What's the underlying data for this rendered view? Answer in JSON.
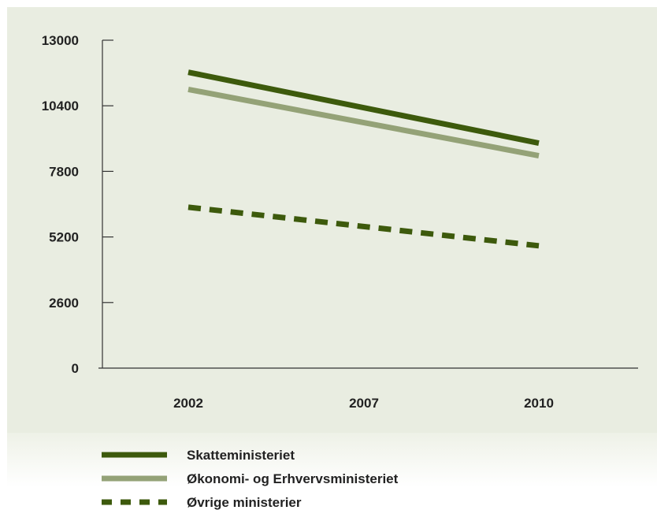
{
  "chart_data": {
    "type": "line",
    "x": [
      "2002",
      "2007",
      "2010"
    ],
    "yticks": [
      0,
      2600,
      5200,
      7800,
      10400,
      13000
    ],
    "ylim": [
      0,
      13000
    ],
    "grid": false,
    "legend_position": "bottom-left",
    "series": [
      {
        "name": "Skatteministeriet",
        "x": [
          "2002",
          "2010"
        ],
        "values": [
          11730,
          8920
        ],
        "color": "#3d5a0c",
        "style": "solid"
      },
      {
        "name": "Økonomi- og Erhvervsministeriet",
        "x": [
          "2002",
          "2010"
        ],
        "values": [
          11050,
          8420
        ],
        "color": "#94a277",
        "style": "solid"
      },
      {
        "name": "Øvrige ministerier",
        "x": [
          "2002",
          "2010"
        ],
        "values": [
          6380,
          4850
        ],
        "color": "#3d5a0c",
        "style": "dashed"
      }
    ]
  },
  "colors": {
    "plot_background": "#e9ede1",
    "axis": "#333333"
  }
}
